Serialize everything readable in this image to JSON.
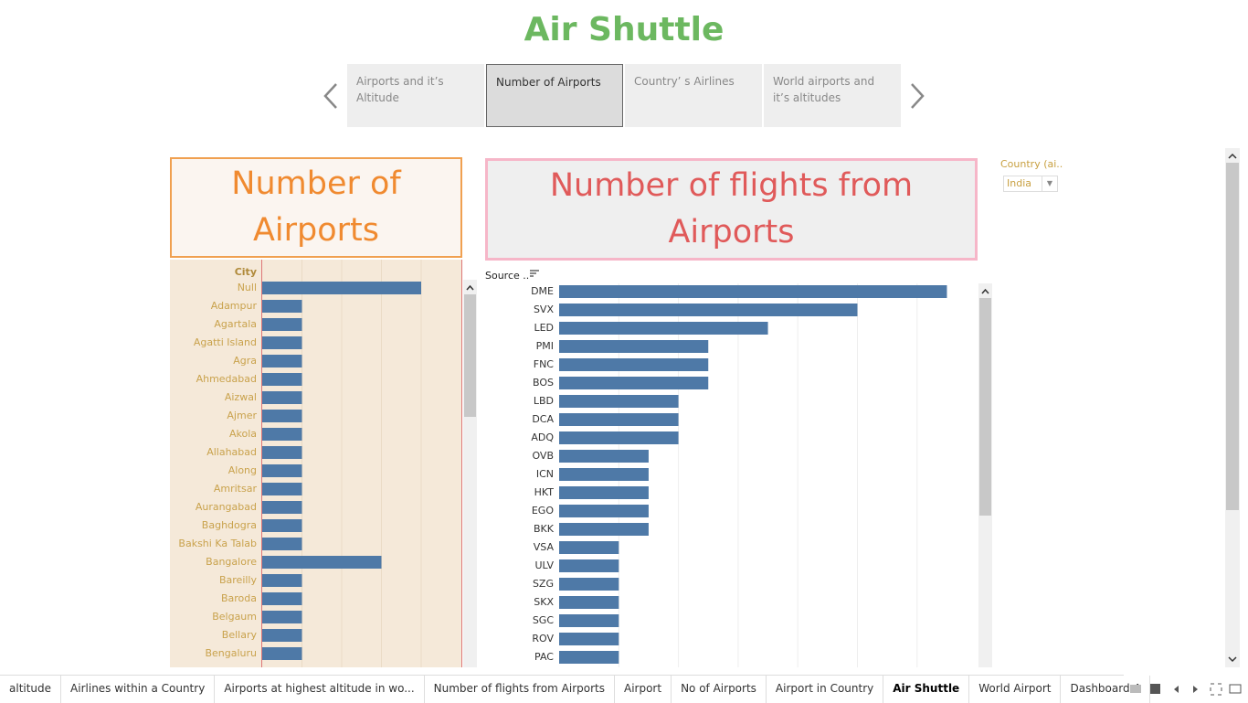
{
  "header": {
    "title": "Air Shuttle"
  },
  "story_points": {
    "items": [
      "Airports and it’s Altitude",
      "Number of Airports",
      "Country’ s Airlines",
      "World airports and it’s altitudes"
    ],
    "selected": 1
  },
  "left_panel": {
    "title": "Number of Airports",
    "field": "City",
    "categories": [
      "Null",
      "Adampur",
      "Agartala",
      "Agatti Island",
      "Agra",
      "Ahmedabad",
      "Aizwal",
      "Ajmer",
      "Akola",
      "Allahabad",
      "Along",
      "Amritsar",
      "Aurangabad",
      "Baghdogra",
      "Bakshi Ka Talab",
      "Bangalore",
      "Bareilly",
      "Baroda",
      "Belgaum",
      "Bellary",
      "Bengaluru"
    ],
    "values": [
      4,
      1,
      1,
      1,
      1,
      1,
      1,
      1,
      1,
      1,
      1,
      1,
      1,
      1,
      1,
      3,
      1,
      1,
      1,
      1,
      1
    ],
    "color": "#4e79a7"
  },
  "right_panel": {
    "title": "Number of flights from Airports",
    "field": "Source ..",
    "categories": [
      "DME",
      "SVX",
      "LED",
      "PMI",
      "FNC",
      "BOS",
      "LBD",
      "DCA",
      "ADQ",
      "OVB",
      "ICN",
      "HKT",
      "EGO",
      "BKK",
      "VSA",
      "ULV",
      "SZG",
      "SKX",
      "SGC",
      "ROV",
      "PAC"
    ],
    "values": [
      13,
      10,
      7,
      5,
      5,
      5,
      4,
      4,
      4,
      3,
      3,
      3,
      3,
      3,
      2,
      2,
      2,
      2,
      2,
      2,
      2
    ],
    "color": "#4e79a7"
  },
  "filter": {
    "label": "Country (ai..",
    "value": "India"
  },
  "tabs": {
    "items": [
      "altitude",
      "Airlines within a Country",
      "Airports at highest altitude in wo...",
      "Number of flights from Airports",
      "Airport",
      "No of Airports",
      "Airport in  Country",
      "Air Shuttle",
      "World Airport",
      "Dashboard 4"
    ],
    "selected": 7
  }
}
